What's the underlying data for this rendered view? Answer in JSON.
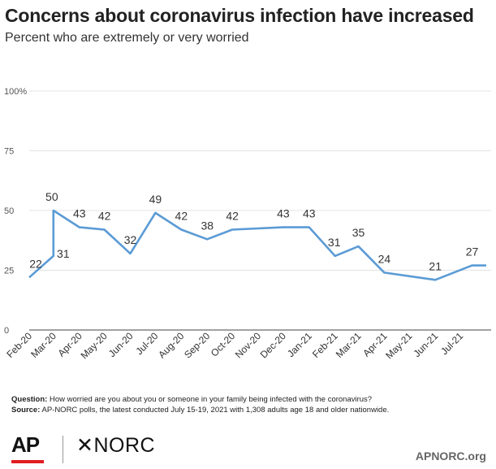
{
  "header": {
    "title": "Concerns about coronavirus infection have increased",
    "subtitle": "Percent who are extremely or very worried"
  },
  "chart_data": {
    "type": "line",
    "ylim": [
      0,
      100
    ],
    "yticks": [
      "0",
      "25",
      "50",
      "75",
      "100%"
    ],
    "ytick_values": [
      0,
      25,
      50,
      75,
      100
    ],
    "categories": [
      "Feb-20",
      "Mar-20",
      "Apr-20",
      "May-20",
      "Jun-20",
      "Jul-20",
      "Aug-20",
      "Sep-20",
      "Oct-20",
      "Nov-20",
      "Dec-20",
      "Jan-21",
      "Feb-21",
      "Mar-21",
      "Apr-21",
      "May-21",
      "Jun-21",
      "Jul-21"
    ],
    "points": [
      {
        "x": "2020-02-01",
        "y": 22,
        "label": "22"
      },
      {
        "x": "2020-03-01",
        "y": 31,
        "label": "31"
      },
      {
        "x": "2020-03-01",
        "y": 50,
        "label": "50"
      },
      {
        "x": "2020-04-01",
        "y": 43,
        "label": "43"
      },
      {
        "x": "2020-05-01",
        "y": 42,
        "label": "42"
      },
      {
        "x": "2020-06-01",
        "y": 32,
        "label": "32"
      },
      {
        "x": "2020-07-01",
        "y": 49,
        "label": "49"
      },
      {
        "x": "2020-08-01",
        "y": 42,
        "label": "42"
      },
      {
        "x": "2020-09-01",
        "y": 38,
        "label": "38"
      },
      {
        "x": "2020-10-01",
        "y": 42,
        "label": "42"
      },
      {
        "x": "2020-12-01",
        "y": 43,
        "label": "43"
      },
      {
        "x": "2021-01-01",
        "y": 43,
        "label": "43"
      },
      {
        "x": "2021-02-01",
        "y": 31,
        "label": "31"
      },
      {
        "x": "2021-03-01",
        "y": 35,
        "label": "35"
      },
      {
        "x": "2021-04-01",
        "y": 24,
        "label": "24"
      },
      {
        "x": "2021-06-01",
        "y": 21,
        "label": "21"
      },
      {
        "x": "2021-07-15",
        "y": 27,
        "label": "27"
      }
    ],
    "line_color": "#5b9bd5",
    "grid": true
  },
  "notes": {
    "question_label": "Question:",
    "question_text": " How worried are you about you or someone in your family being infected with the coronavirus?",
    "source_label": "Source:",
    "source_text": "  AP-NORC polls, the latest conducted July 15-19, 2021 with 1,308 adults age 18 and older nationwide."
  },
  "footer": {
    "ap_logo": "AP",
    "norc_logo": "✕NORC",
    "url": "APNORC.org",
    "ap_red": "#e11b22"
  }
}
